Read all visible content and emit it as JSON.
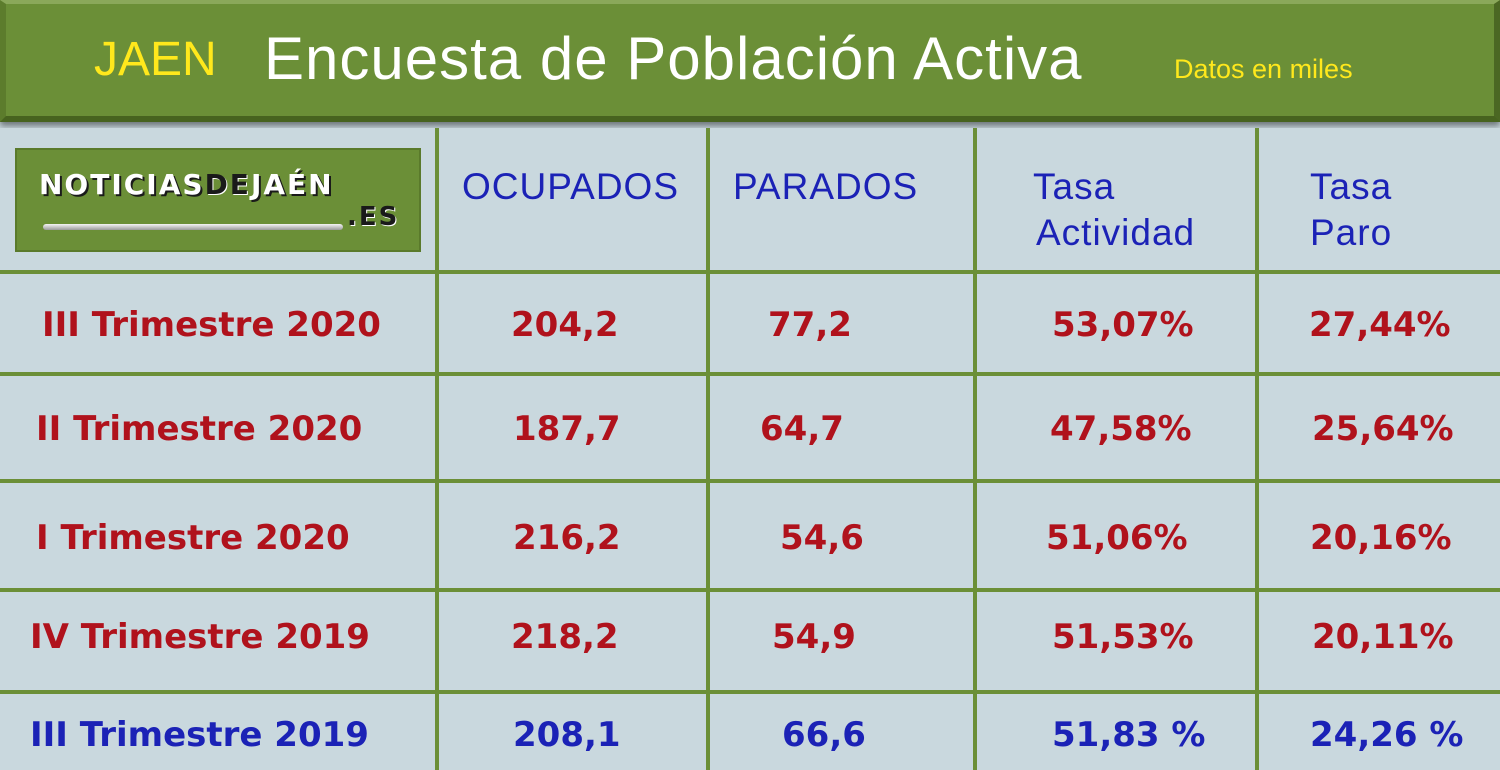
{
  "header": {
    "province": "JAEN",
    "title": "Encuesta de Población Activa",
    "subtitle": "Datos en miles"
  },
  "logo": {
    "main": "NOTICIASDEJAÉN",
    "part1": "NOTICIAS",
    "part2": "DE",
    "part3": "JAÉN",
    "suffix": ".ES"
  },
  "colors": {
    "header_bg": "#6b8f37",
    "table_bg": "#c9d8de",
    "grid_line": "#6b8f37",
    "value_red": "#b0121c",
    "value_blue": "#1b22b6",
    "title_white": "#ffffff",
    "accent_yellow": "#ffe81c"
  },
  "chart_data": {
    "type": "table",
    "title": "Encuesta de Población Activa",
    "subtitle": "Datos en miles",
    "columns": [
      "OCUPADOS",
      "PARADOS",
      "Tasa Actividad",
      "Tasa Paro"
    ],
    "column_lines": [
      [
        "OCUPADOS"
      ],
      [
        "PARADOS"
      ],
      [
        "Tasa",
        "Actividad"
      ],
      [
        "Tasa",
        "Paro"
      ]
    ],
    "rows": [
      {
        "label": "III Trimestre 2020",
        "values": [
          "204,2",
          "77,2",
          "53,07%",
          "27,44%"
        ],
        "color": "red"
      },
      {
        "label": "II Trimestre 2020",
        "values": [
          "187,7",
          "64,7",
          "47,58%",
          "25,64%"
        ],
        "color": "red"
      },
      {
        "label": "I Trimestre 2020",
        "values": [
          "216,2",
          "54,6",
          "51,06%",
          "20,16%"
        ],
        "color": "red"
      },
      {
        "label": "IV Trimestre 2019",
        "values": [
          "218,2",
          "54,9",
          "51,53%",
          "20,11%"
        ],
        "color": "red"
      },
      {
        "label": "III Trimestre 2019",
        "values": [
          "208,1",
          "66,6",
          "51,83 %",
          "24,26 %"
        ],
        "color": "blue"
      }
    ]
  }
}
